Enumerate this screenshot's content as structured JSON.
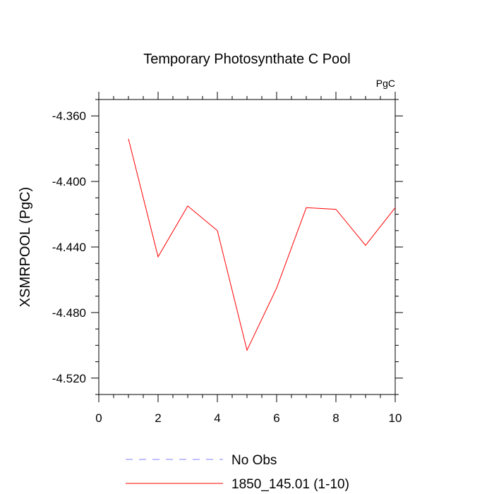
{
  "chart_data": {
    "type": "line",
    "title": "Temporary Photosynthate C Pool",
    "units_label": "PgC",
    "ylabel": "XSMRPOOL  (PgC)",
    "xlabel": "",
    "xlim": [
      0,
      10
    ],
    "ylim": [
      -4.53,
      -4.35
    ],
    "x_ticks": [
      0,
      2,
      4,
      6,
      8,
      10
    ],
    "x_tick_labels": [
      "0",
      "2",
      "4",
      "6",
      "8",
      "10"
    ],
    "y_ticks": [
      -4.52,
      -4.48,
      -4.44,
      -4.4,
      -4.36
    ],
    "y_tick_labels": [
      "-4.520",
      "-4.480",
      "-4.440",
      "-4.400",
      "-4.360"
    ],
    "grid": false,
    "legend_position": "bottom",
    "series": [
      {
        "name": "No Obs",
        "color": "#8080ff",
        "style": "dashed",
        "x": [],
        "values": []
      },
      {
        "name": "1850_145.01 (1-10)",
        "color": "#ff0000",
        "style": "solid",
        "x": [
          1,
          2,
          3,
          4,
          5,
          6,
          7,
          8,
          9,
          10
        ],
        "values": [
          -4.374,
          -4.446,
          -4.415,
          -4.43,
          -4.503,
          -4.465,
          -4.416,
          -4.417,
          -4.439,
          -4.416
        ]
      }
    ]
  }
}
